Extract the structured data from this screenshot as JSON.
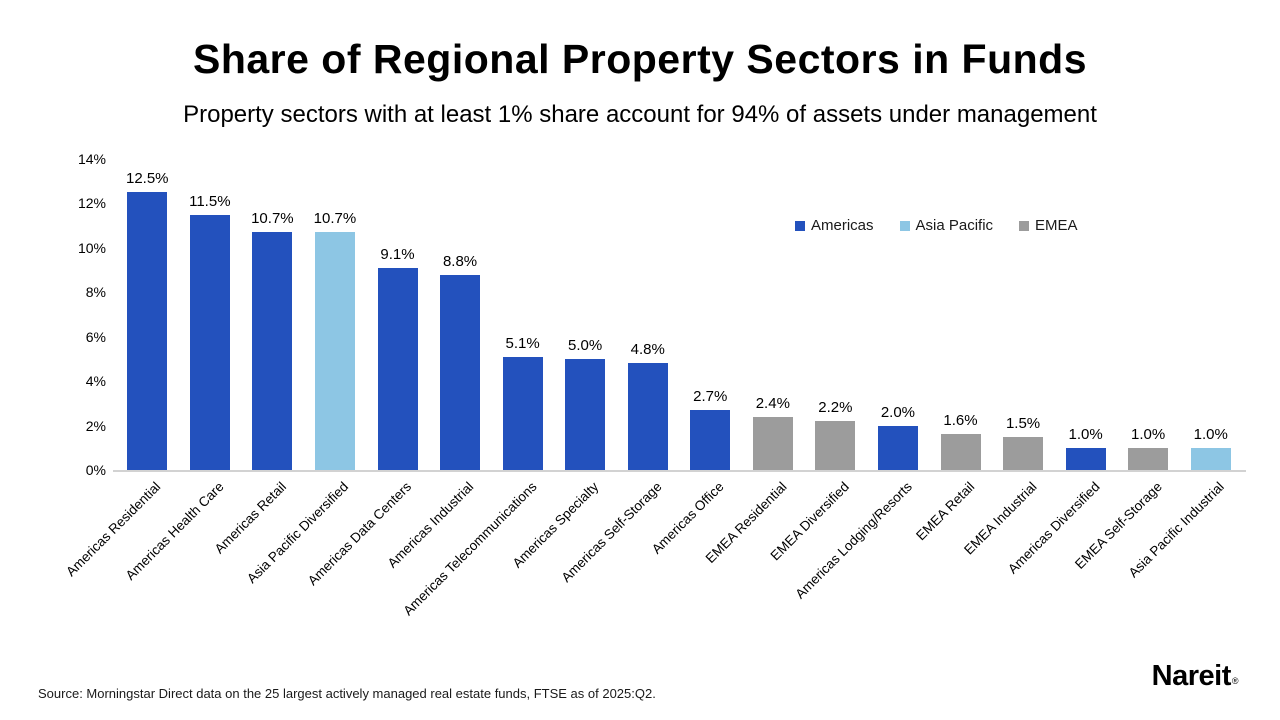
{
  "title": "Share of Regional Property Sectors in Funds",
  "subtitle": "Property sectors with at least 1% share account for 94% of assets under management",
  "source": "Source: Morningstar Direct data on the 25 largest actively managed real estate funds, FTSE as of 2025:Q2.",
  "logo": {
    "text": "Nareit",
    "registered": "®"
  },
  "legend": [
    {
      "label": "Americas",
      "color": "#2351bd"
    },
    {
      "label": "Asia Pacific",
      "color": "#8dc6e4"
    },
    {
      "label": "EMEA",
      "color": "#9c9c9c"
    }
  ],
  "colors": {
    "americas": "#2351bd",
    "asia_pacific": "#8dc6e4",
    "emea": "#9c9c9c",
    "axis_line": "#d2d2d2"
  },
  "chart_data": {
    "type": "bar",
    "title": "Share of Regional Property Sectors in Funds",
    "subtitle": "Property sectors with at least 1% share account for 94% of assets under management",
    "categories": [
      "Americas Residential",
      "Americas Health Care",
      "Americas Retail",
      "Asia Pacific Diversified",
      "Americas Data Centers",
      "Americas Industrial",
      "Americas Telecommunications",
      "Americas Specialty",
      "Americas Self-Storage",
      "Americas Office",
      "EMEA Residential",
      "EMEA Diversified",
      "Americas Lodging/Resorts",
      "EMEA Retail",
      "EMEA Industrial",
      "Americas Diversified",
      "EMEA Self-Storage",
      "Asia Pacific Industrial"
    ],
    "values": [
      12.5,
      11.5,
      10.7,
      10.7,
      9.1,
      8.8,
      5.1,
      5.0,
      4.8,
      2.7,
      2.4,
      2.2,
      2.0,
      1.6,
      1.5,
      1.0,
      1.0,
      1.0
    ],
    "value_labels": [
      "12.5%",
      "11.5%",
      "10.7%",
      "10.7%",
      "9.1%",
      "8.8%",
      "5.1%",
      "5.0%",
      "4.8%",
      "2.7%",
      "2.4%",
      "2.2%",
      "2.0%",
      "1.6%",
      "1.5%",
      "1.0%",
      "1.0%",
      "1.0%"
    ],
    "regions": [
      "Americas",
      "Americas",
      "Americas",
      "Asia Pacific",
      "Americas",
      "Americas",
      "Americas",
      "Americas",
      "Americas",
      "Americas",
      "EMEA",
      "EMEA",
      "Americas",
      "EMEA",
      "EMEA",
      "Americas",
      "EMEA",
      "Asia Pacific"
    ],
    "region_colors": {
      "Americas": "#2351bd",
      "Asia Pacific": "#8dc6e4",
      "EMEA": "#9c9c9c"
    },
    "y_ticks": [
      "0%",
      "2%",
      "4%",
      "6%",
      "8%",
      "10%",
      "12%",
      "14%"
    ],
    "y_tick_values": [
      0,
      2,
      4,
      6,
      8,
      10,
      12,
      14
    ],
    "xlabel": "",
    "ylabel": "",
    "ylim": [
      0,
      14
    ],
    "grid": false,
    "legend_position": "upper right",
    "legend_entries": [
      "Americas",
      "Asia Pacific",
      "EMEA"
    ]
  }
}
